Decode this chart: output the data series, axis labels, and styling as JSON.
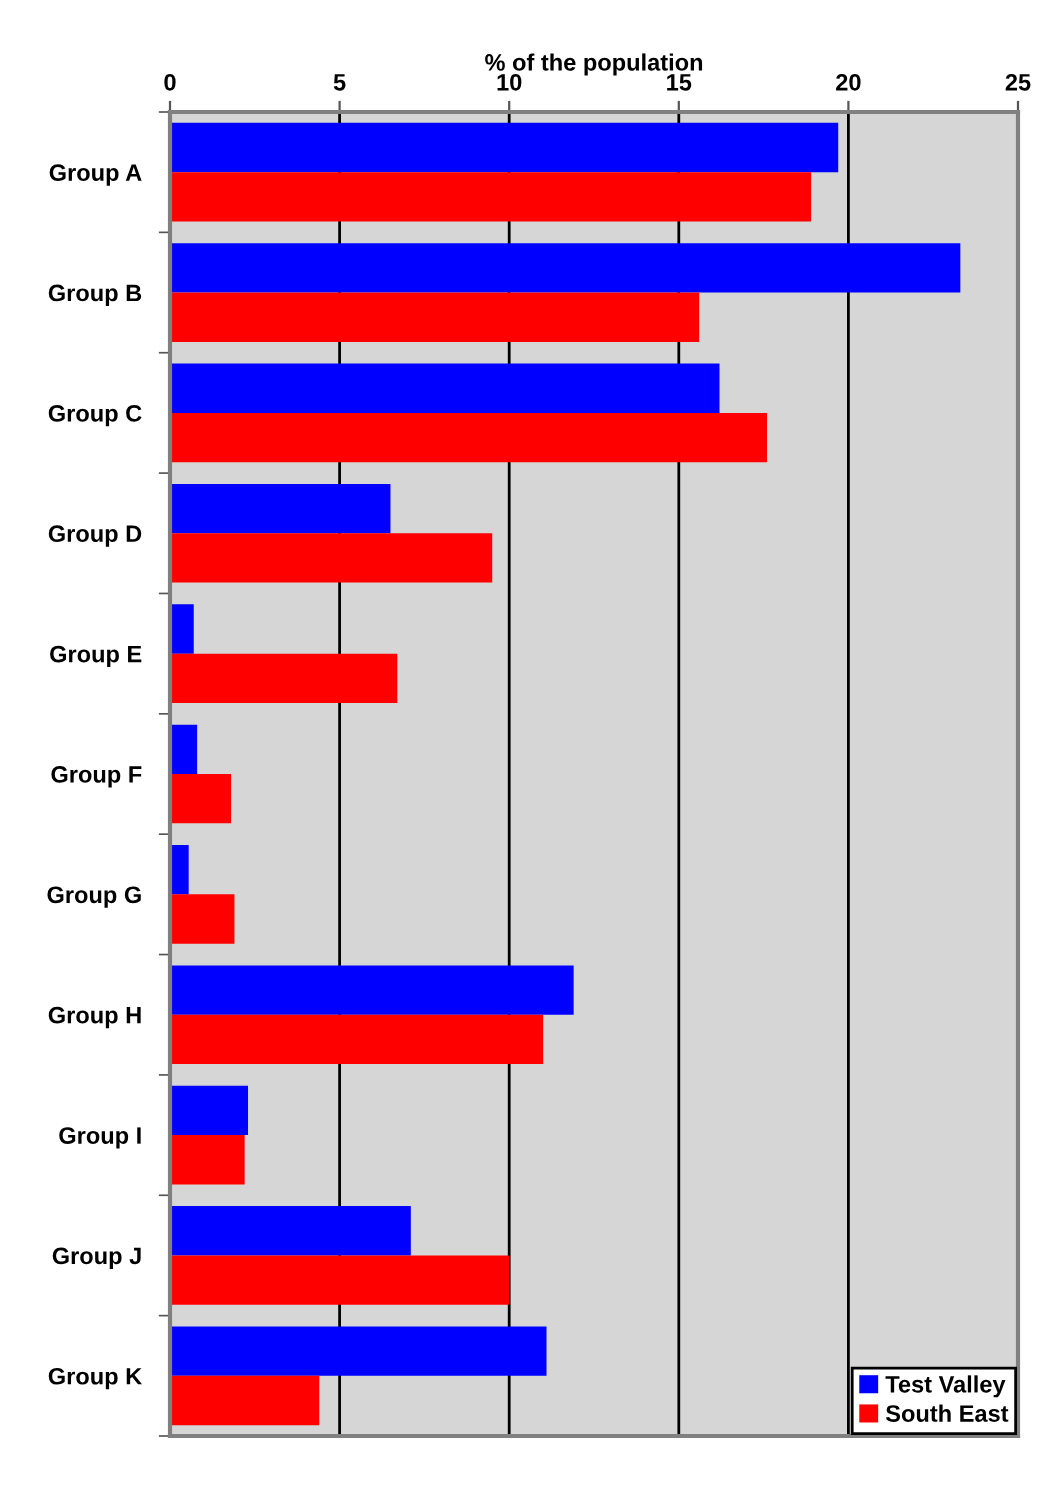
{
  "chart_data": {
    "type": "bar",
    "orientation": "horizontal",
    "xlabel": "% of the population",
    "categories": [
      "Group A",
      "Group B",
      "Group C",
      "Group D",
      "Group E",
      "Group F",
      "Group G",
      "Group H",
      "Group I",
      "Group J",
      "Group K"
    ],
    "series": [
      {
        "name": "Test Valley",
        "color": "#0000ff",
        "values": [
          19.7,
          23.3,
          16.2,
          6.5,
          0.7,
          0.8,
          0.55,
          11.9,
          2.3,
          7.1,
          11.1
        ]
      },
      {
        "name": "South East",
        "color": "#ff0000",
        "values": [
          18.9,
          15.6,
          17.6,
          9.5,
          6.7,
          1.8,
          1.9,
          11.0,
          2.2,
          10.0,
          4.4
        ]
      }
    ],
    "xlim": [
      0,
      25
    ],
    "xticks": [
      0,
      5,
      10,
      15,
      20,
      25
    ],
    "grid": "x",
    "legend": "bottom right"
  }
}
